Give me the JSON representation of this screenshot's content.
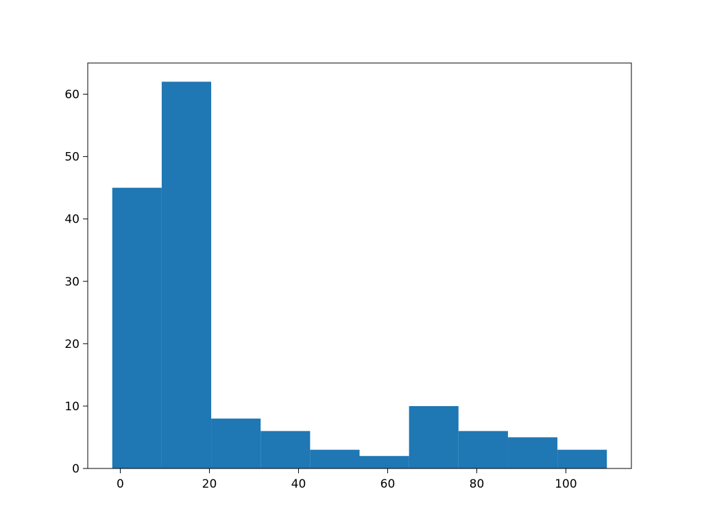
{
  "chart_data": {
    "type": "bar",
    "subtype": "histogram",
    "bin_edges": [
      -1.8,
      9.3,
      20.4,
      31.5,
      42.6,
      53.7,
      64.8,
      75.9,
      87.0,
      98.1,
      109.2
    ],
    "counts": [
      45,
      62,
      8,
      6,
      3,
      2,
      10,
      6,
      5,
      3
    ],
    "xlim": [
      -7.3,
      114.7
    ],
    "ylim": [
      0,
      65
    ],
    "xticks": [
      0,
      20,
      40,
      60,
      80,
      100
    ],
    "yticks": [
      0,
      10,
      20,
      30,
      40,
      50,
      60
    ],
    "title": "",
    "xlabel": "",
    "ylabel": "",
    "grid": false,
    "bar_color": "#1f77b4"
  }
}
